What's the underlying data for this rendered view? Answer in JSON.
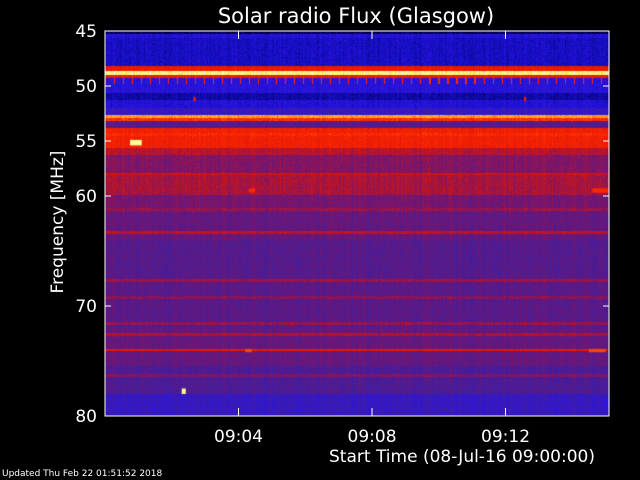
{
  "footer": "Updated Thu Feb 22 01:51:52 2018",
  "colors": {
    "background": "#000000",
    "text": "#ffffff",
    "colormap_low": "#000033",
    "colormap_blue": "#1a10c8",
    "colormap_purple": "#4a2090",
    "colormap_red": "#dd1500",
    "colormap_high": "#ffff66"
  },
  "chart_data": {
    "type": "heatmap",
    "title": "Solar radio Flux (Glasgow)",
    "xlabel": "Start Time (08-Jul-16 09:00:00)",
    "ylabel": "Frequency [MHz]",
    "xlim_minutes": [
      0,
      15.1
    ],
    "ylim_mhz": [
      45,
      80
    ],
    "y_inverted": true,
    "y_ticks": [
      {
        "value": 45,
        "label": "45"
      },
      {
        "value": 50,
        "label": "50"
      },
      {
        "value": 55,
        "label": "55"
      },
      {
        "value": 60,
        "label": "60"
      },
      {
        "value": 70,
        "label": "70"
      },
      {
        "value": 80,
        "label": "80"
      }
    ],
    "x_ticks": [
      {
        "value": 4,
        "label": "09:04"
      },
      {
        "value": 8,
        "label": "09:08"
      },
      {
        "value": 12,
        "label": "09:12"
      }
    ],
    "frequency_profile": [
      {
        "f0": 45.0,
        "f1": 45.3,
        "level": 0.05
      },
      {
        "f0": 45.3,
        "f1": 45.6,
        "level": 0.2
      },
      {
        "f0": 45.6,
        "f1": 48.2,
        "level": 0.16
      },
      {
        "f0": 48.2,
        "f1": 48.6,
        "level": 0.62
      },
      {
        "f0": 48.6,
        "f1": 49.0,
        "level": 0.98
      },
      {
        "f0": 49.0,
        "f1": 49.3,
        "level": 0.62
      },
      {
        "f0": 49.3,
        "f1": 50.6,
        "level": 0.22
      },
      {
        "f0": 50.6,
        "f1": 51.3,
        "level": 0.12
      },
      {
        "f0": 51.3,
        "f1": 52.0,
        "level": 0.2
      },
      {
        "f0": 52.0,
        "f1": 52.6,
        "level": 0.28
      },
      {
        "f0": 52.6,
        "f1": 53.2,
        "level": 0.72
      },
      {
        "f0": 53.2,
        "f1": 53.8,
        "level": 0.38
      },
      {
        "f0": 53.8,
        "f1": 55.6,
        "level": 0.66
      },
      {
        "f0": 55.6,
        "f1": 56.3,
        "level": 0.52
      },
      {
        "f0": 56.3,
        "f1": 58.0,
        "level": 0.45
      },
      {
        "f0": 58.0,
        "f1": 59.6,
        "level": 0.5
      },
      {
        "f0": 59.6,
        "f1": 61.5,
        "level": 0.43
      },
      {
        "f0": 61.5,
        "f1": 64.0,
        "level": 0.4
      },
      {
        "f0": 64.0,
        "f1": 67.5,
        "level": 0.37
      },
      {
        "f0": 67.5,
        "f1": 72.0,
        "level": 0.38
      },
      {
        "f0": 72.0,
        "f1": 75.5,
        "level": 0.4
      },
      {
        "f0": 75.5,
        "f1": 78.0,
        "level": 0.35
      },
      {
        "f0": 78.0,
        "f1": 80.0,
        "level": 0.28
      }
    ],
    "horizontal_lines": [
      {
        "f": 52.8,
        "level": 0.85
      },
      {
        "f": 54.4,
        "level": 0.7
      },
      {
        "f": 58.0,
        "level": 0.55
      },
      {
        "f": 59.8,
        "level": 0.5
      },
      {
        "f": 61.2,
        "level": 0.48
      },
      {
        "f": 63.3,
        "level": 0.52
      },
      {
        "f": 67.7,
        "level": 0.48
      },
      {
        "f": 69.2,
        "level": 0.46
      },
      {
        "f": 71.6,
        "level": 0.48
      },
      {
        "f": 72.6,
        "level": 0.5
      },
      {
        "f": 74.0,
        "level": 0.6
      },
      {
        "f": 76.3,
        "level": 0.45
      }
    ],
    "periodic_ticks": {
      "f0": 49.2,
      "f1": 49.8,
      "spacing_minutes": 0.27,
      "level": 0.7
    },
    "bright_spots": [
      {
        "t": 0.75,
        "f0": 54.9,
        "f1": 55.4,
        "t1": 1.1,
        "level": 1.0
      },
      {
        "t": 2.65,
        "f0": 51.0,
        "f1": 51.4,
        "t1": 2.72,
        "level": 0.65
      },
      {
        "t": 4.3,
        "f0": 59.3,
        "f1": 59.7,
        "t1": 4.5,
        "level": 0.7
      },
      {
        "t": 12.55,
        "f0": 51.0,
        "f1": 51.4,
        "t1": 12.62,
        "level": 0.65
      },
      {
        "t": 14.6,
        "f0": 59.3,
        "f1": 59.7,
        "t1": 15.1,
        "level": 0.7
      },
      {
        "t": 4.2,
        "f0": 73.9,
        "f1": 74.2,
        "t1": 4.4,
        "level": 0.75
      },
      {
        "t": 14.5,
        "f0": 73.9,
        "f1": 74.2,
        "t1": 15.0,
        "level": 0.75
      },
      {
        "t": 2.3,
        "f0": 77.5,
        "f1": 78.0,
        "t1": 2.42,
        "level": 1.0
      }
    ]
  }
}
